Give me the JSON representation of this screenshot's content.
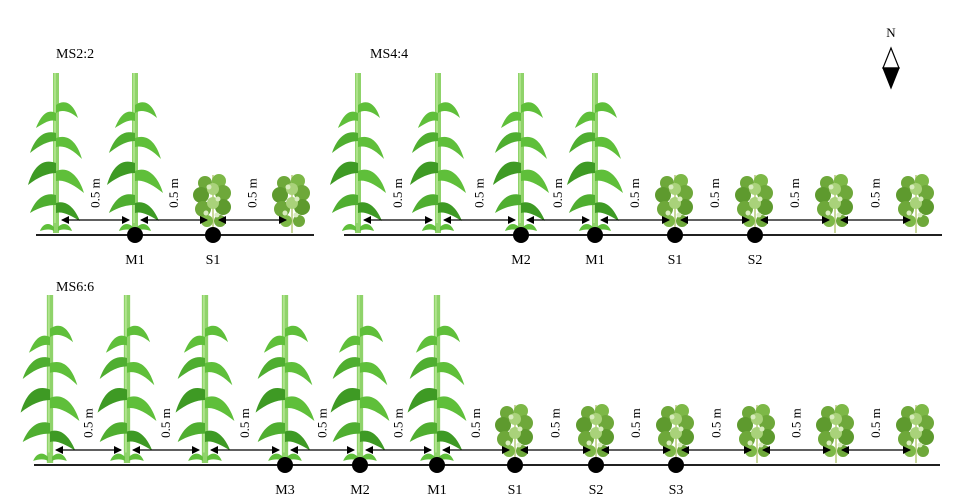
{
  "north": {
    "letter": "N"
  },
  "panels": [
    {
      "id": "ms22",
      "title": "MS2:2",
      "plants": [
        "maize",
        "maize",
        "soy",
        "soy"
      ],
      "distance_label": "0.5 m",
      "points": [
        {
          "label": "M1",
          "between": 1
        },
        {
          "label": "S1",
          "between": 2
        }
      ]
    },
    {
      "id": "ms44",
      "title": "MS4:4",
      "plants": [
        "maize",
        "maize",
        "maize",
        "maize",
        "soy",
        "soy",
        "soy",
        "soy"
      ],
      "distance_label": "0.5 m",
      "points": [
        {
          "label": "M2",
          "between": 2
        },
        {
          "label": "M1",
          "between": 3
        },
        {
          "label": "S1",
          "between": 4
        },
        {
          "label": "S2",
          "between": 5
        }
      ]
    },
    {
      "id": "ms66",
      "title": "MS6:6",
      "plants": [
        "maize",
        "maize",
        "maize",
        "maize",
        "maize",
        "maize",
        "soy",
        "soy",
        "soy",
        "soy",
        "soy",
        "soy"
      ],
      "distance_label": "0.5 m",
      "points": [
        {
          "label": "M3",
          "between": 3
        },
        {
          "label": "M2",
          "between": 4
        },
        {
          "label": "M1",
          "between": 5
        },
        {
          "label": "S1",
          "between": 6
        },
        {
          "label": "S2",
          "between": 7
        },
        {
          "label": "S3",
          "between": 8
        }
      ]
    }
  ],
  "colors": {
    "maize_leaf": "#5fbf3a",
    "maize_leaf_dark": "#3e9a24",
    "maize_stem": "#8fd36a",
    "soy_leaf": "#6ea83a",
    "soy_leaf_light": "#a9d27a",
    "soy_stem": "#c9d79a",
    "line": "#000000"
  }
}
